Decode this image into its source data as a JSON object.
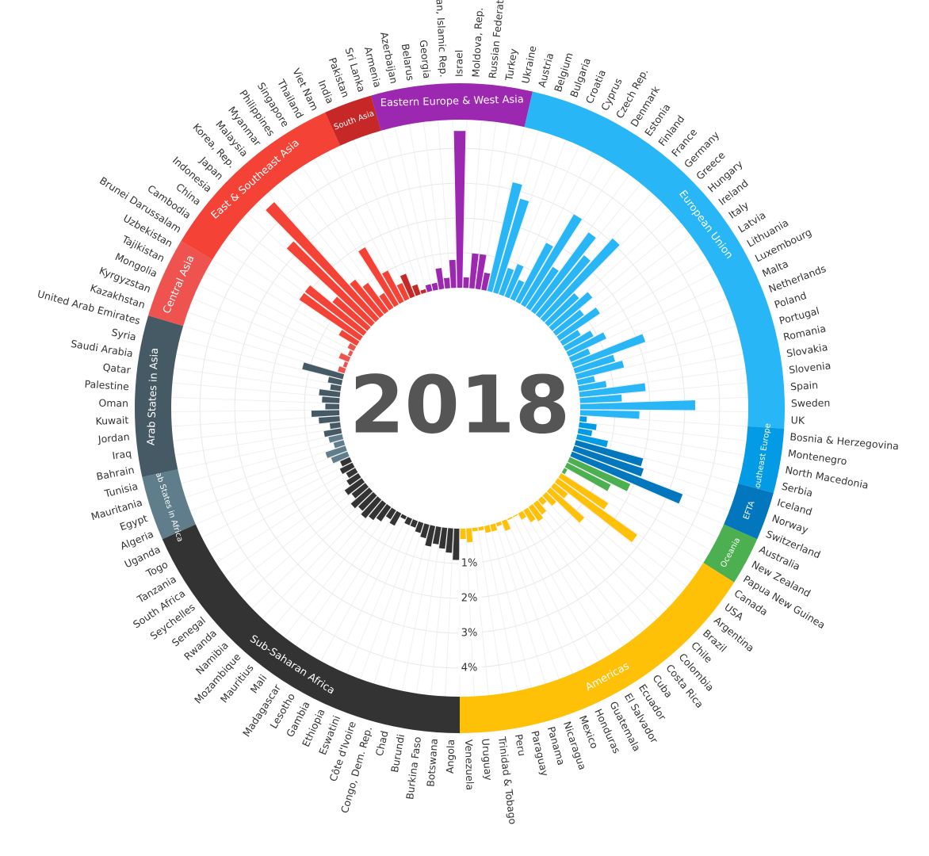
{
  "chart_data": {
    "type": "radial_bar",
    "title": "2018",
    "ylim": [
      0,
      4.8
    ],
    "yticks": [
      {
        "value": 1,
        "label": "1%"
      },
      {
        "value": 2,
        "label": "2%"
      },
      {
        "value": 3,
        "label": "3%"
      },
      {
        "value": 4,
        "label": "4%"
      }
    ],
    "grid": true,
    "regions": [
      {
        "name": "Sub-Saharan Africa",
        "color": "#333333",
        "categories": [
          "Angola",
          "Botswana",
          "Burkina Faso",
          "Burundi",
          "Chad",
          "Congo, Dem. Rep.",
          "Côte d'Ivoire",
          "Eswatini",
          "Ethiopia",
          "Gambia",
          "Lesotho",
          "Madagascar",
          "Mali",
          "Mauritius",
          "Mozambique",
          "Namibia",
          "Rwanda",
          "Senegal",
          "Seychelles",
          "South Africa",
          "Tanzania",
          "Togo",
          "Uganda"
        ],
        "values": [
          0.9,
          0.7,
          0.6,
          0.5,
          0.6,
          0.4,
          0.3,
          0.2,
          0.2,
          0.1,
          0.4,
          0.3,
          0.5,
          0.6,
          0.7,
          0.6,
          0.7,
          0.5,
          0.6,
          0.4,
          0.3,
          0.4,
          0.3
        ]
      },
      {
        "name": "Arab States in Africa",
        "color": "#607d8b",
        "categories": [
          "Algeria",
          "Egypt",
          "Mauritania",
          "Tunisia"
        ],
        "values": [
          0.5,
          0.6,
          0.3,
          0.4
        ]
      },
      {
        "name": "Arab States in Asia",
        "color": "#455a64",
        "categories": [
          "Bahrain",
          "Iraq",
          "Jordan",
          "Kuwait",
          "Oman",
          "Palestine",
          "Qatar",
          "Saudi Arabia",
          "Syria",
          "United Arab Emirates"
        ],
        "values": [
          0.5,
          0.3,
          0.6,
          0.8,
          0.4,
          0.5,
          0.6,
          0.3,
          0.4,
          1.2
        ]
      },
      {
        "name": "Central Asia",
        "color": "#ef5350",
        "categories": [
          "Kazakhstan",
          "Kyrgyzstan",
          "Mongolia",
          "Tajikistan",
          "Uzbekistan"
        ],
        "values": [
          0.2,
          0.1,
          0.3,
          0.1,
          0.2
        ]
      },
      {
        "name": "East & Southeast Asia",
        "color": "#f44336",
        "categories": [
          "Brunei Darussalam",
          "Cambodia",
          "China",
          "Indonesia",
          "Japan",
          "Korea, Rep.",
          "Malaysia",
          "Myanmar",
          "Philippines",
          "Singapore",
          "Thailand",
          "Viet Nam"
        ],
        "values": [
          0.6,
          2.1,
          2.1,
          1.3,
          3.3,
          4.5,
          1.3,
          1.0,
          0.5,
          1.9,
          1.0,
          0.5
        ]
      },
      {
        "name": "South Asia",
        "color": "#c62828",
        "categories": [
          "India",
          "Pakistan",
          "Sri Lanka"
        ],
        "values": [
          0.7,
          0.3,
          0.1
        ]
      },
      {
        "name": "Eastern Europe & West Asia",
        "color": "#9c27b0",
        "categories": [
          "Armenia",
          "Azerbaijan",
          "Belarus",
          "Georgia",
          "Iran, Islamic Rep.",
          "Israel",
          "Moldova, Rep.",
          "Russian Federation",
          "Turkey",
          "Ukraine"
        ],
        "values": [
          0.2,
          0.2,
          0.6,
          0.3,
          0.8,
          4.5,
          0.3,
          1.0,
          1.0,
          0.5
        ]
      },
      {
        "name": "European Union",
        "color": "#29b6f6",
        "categories": [
          "Austria",
          "Belgium",
          "Bulgaria",
          "Croatia",
          "Cyprus",
          "Czech Rep.",
          "Denmark",
          "Estonia",
          "Finland",
          "France",
          "Germany",
          "Greece",
          "Hungary",
          "Ireland",
          "Italy",
          "Latvia",
          "Lithuania",
          "Luxembourg",
          "Malta",
          "Netherlands",
          "Poland",
          "Portugal",
          "Romania",
          "Slovakia",
          "Slovenia",
          "Spain",
          "Sweden",
          "UK"
        ],
        "values": [
          3.2,
          2.8,
          0.8,
          1.0,
          0.6,
          1.9,
          3.0,
          1.4,
          2.8,
          2.2,
          3.1,
          1.2,
          1.5,
          1.0,
          1.4,
          0.6,
          0.9,
          1.2,
          0.6,
          2.2,
          1.2,
          1.4,
          0.5,
          0.8,
          1.9,
          1.2,
          3.3,
          1.7
        ]
      },
      {
        "name": "Southeast Europe",
        "color": "#039be5",
        "categories": [
          "Bosnia & Herzegovina",
          "Montenegro",
          "North Macedonia",
          "Serbia"
        ],
        "values": [
          0.2,
          0.5,
          0.4,
          0.9
        ]
      },
      {
        "name": "EFTA",
        "color": "#0277bd",
        "categories": [
          "Iceland",
          "Norway",
          "Switzerland"
        ],
        "values": [
          2.0,
          2.1,
          3.4
        ]
      },
      {
        "name": "Oceania",
        "color": "#4caf50",
        "categories": [
          "Australia",
          "New Zealand",
          "Papua New Guinea"
        ],
        "values": [
          1.9,
          1.4,
          0.1
        ]
      },
      {
        "name": "Americas",
        "color": "#ffc107",
        "categories": [
          "Canada",
          "USA",
          "Argentina",
          "Brazil",
          "Chile",
          "Colombia",
          "Costa Rica",
          "Cuba",
          "Ecuador",
          "El Salvador",
          "Guatemala",
          "Honduras",
          "Mexico",
          "Nicaragua",
          "Panama",
          "Paraguay",
          "Peru",
          "Trinidad & Tobago",
          "Uruguay",
          "Venezuela"
        ],
        "values": [
          1.6,
          2.8,
          0.5,
          1.3,
          0.4,
          0.2,
          0.4,
          0.5,
          0.4,
          0.2,
          0.03,
          0.04,
          0.3,
          0.1,
          0.2,
          0.2,
          0.1,
          0.1,
          0.4,
          0.3
        ]
      }
    ]
  }
}
